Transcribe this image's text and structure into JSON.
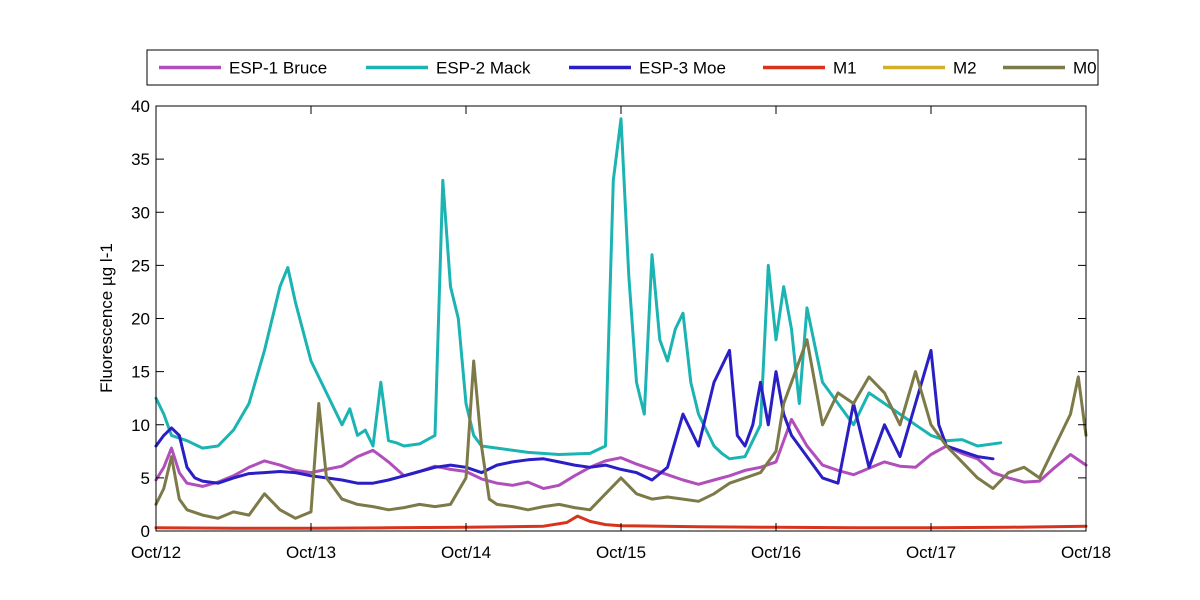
{
  "chart_data": {
    "type": "line",
    "title": "",
    "xlabel": "",
    "ylabel": "Fluorescence µg l-1",
    "ylim": [
      0,
      40
    ],
    "xlim": [
      0,
      6
    ],
    "x_ticks": [
      0,
      1,
      2,
      3,
      4,
      5,
      6
    ],
    "x_tick_labels": [
      "Oct/12",
      "Oct/13",
      "Oct/14",
      "Oct/15",
      "Oct/16",
      "Oct/17",
      "Oct/18"
    ],
    "y_ticks": [
      0,
      5,
      10,
      15,
      20,
      25,
      30,
      35,
      40
    ],
    "y_tick_labels": [
      "0",
      "5",
      "10",
      "15",
      "20",
      "25",
      "30",
      "35",
      "40"
    ],
    "grid": false,
    "legend_position": "top, outside plot, horizontal",
    "series": [
      {
        "name": "ESP-1 Bruce",
        "color": "#b04fbb",
        "x": [
          0,
          0.05,
          0.1,
          0.15,
          0.2,
          0.3,
          0.4,
          0.5,
          0.6,
          0.7,
          0.8,
          0.9,
          1.0,
          1.1,
          1.2,
          1.3,
          1.4,
          1.5,
          1.6,
          1.7,
          1.8,
          1.9,
          2.0,
          2.1,
          2.2,
          2.3,
          2.4,
          2.5,
          2.6,
          2.7,
          2.8,
          2.9,
          3.0,
          3.1,
          3.2,
          3.3,
          3.4,
          3.5,
          3.6,
          3.7,
          3.8,
          3.9,
          4.0,
          4.05,
          4.1,
          4.2,
          4.3,
          4.4,
          4.5,
          4.6,
          4.7,
          4.8,
          4.9,
          5.0,
          5.1,
          5.2,
          5.3,
          5.4,
          5.5,
          5.6,
          5.7,
          5.8,
          5.9,
          6.0
        ],
        "values": [
          4.8,
          6.0,
          7.8,
          5.5,
          4.5,
          4.2,
          4.6,
          5.2,
          6.0,
          6.6,
          6.2,
          5.7,
          5.5,
          5.8,
          6.1,
          7.0,
          7.6,
          6.5,
          5.2,
          5.6,
          6.1,
          5.8,
          5.6,
          4.9,
          4.5,
          4.3,
          4.6,
          4.0,
          4.3,
          5.2,
          6.0,
          6.6,
          6.9,
          6.3,
          5.8,
          5.3,
          4.8,
          4.4,
          4.8,
          5.2,
          5.7,
          6.0,
          6.5,
          8.5,
          10.5,
          8.0,
          6.2,
          5.7,
          5.3,
          5.9,
          6.5,
          6.1,
          6.0,
          7.2,
          8.0,
          7.3,
          6.8,
          5.5,
          5.0,
          4.6,
          4.7,
          6.0,
          7.2,
          6.2
        ]
      },
      {
        "name": "ESP-2 Mack",
        "color": "#1cb3b3",
        "x": [
          0,
          0.05,
          0.1,
          0.2,
          0.3,
          0.4,
          0.5,
          0.6,
          0.7,
          0.8,
          0.85,
          0.9,
          1.0,
          1.1,
          1.2,
          1.25,
          1.3,
          1.35,
          1.4,
          1.45,
          1.5,
          1.55,
          1.6,
          1.7,
          1.8,
          1.85,
          1.9,
          1.95,
          2.0,
          2.05,
          2.1,
          2.2,
          2.4,
          2.6,
          2.8,
          2.9,
          2.95,
          3.0,
          3.05,
          3.1,
          3.15,
          3.2,
          3.25,
          3.3,
          3.35,
          3.4,
          3.45,
          3.5,
          3.55,
          3.6,
          3.65,
          3.7,
          3.8,
          3.9,
          3.95,
          4.0,
          4.05,
          4.1,
          4.15,
          4.2,
          4.3,
          4.4,
          4.5,
          4.6,
          4.7,
          4.8,
          4.9,
          5.0,
          5.1,
          5.2,
          5.3,
          5.45
        ],
        "values": [
          12.5,
          11.0,
          9.0,
          8.5,
          7.8,
          8.0,
          9.5,
          12.0,
          17.0,
          23.0,
          24.8,
          21.5,
          16.0,
          13.0,
          10.0,
          11.5,
          9.0,
          9.5,
          8.0,
          14.0,
          8.5,
          8.3,
          8.0,
          8.2,
          9.0,
          33.0,
          23.0,
          20.0,
          12.0,
          9.0,
          8.0,
          7.8,
          7.4,
          7.2,
          7.3,
          8.0,
          33.0,
          38.8,
          24.0,
          14.0,
          11.0,
          26.0,
          18.0,
          16.0,
          19.0,
          20.5,
          14.0,
          11.0,
          9.5,
          8.0,
          7.3,
          6.8,
          7.0,
          10.0,
          25.0,
          18.0,
          23.0,
          19.0,
          12.0,
          21.0,
          14.0,
          12.0,
          10.0,
          13.0,
          12.0,
          11.0,
          10.0,
          9.0,
          8.5,
          8.6,
          8.0,
          8.3
        ]
      },
      {
        "name": "ESP-3 Moe",
        "color": "#2a1fc4",
        "x": [
          0,
          0.05,
          0.1,
          0.15,
          0.2,
          0.25,
          0.3,
          0.4,
          0.5,
          0.6,
          0.7,
          0.8,
          0.9,
          1.0,
          1.1,
          1.2,
          1.3,
          1.4,
          1.5,
          1.6,
          1.7,
          1.8,
          1.9,
          2.0,
          2.1,
          2.2,
          2.3,
          2.4,
          2.5,
          2.6,
          2.7,
          2.8,
          2.9,
          3.0,
          3.1,
          3.2,
          3.3,
          3.4,
          3.5,
          3.6,
          3.7,
          3.75,
          3.8,
          3.85,
          3.9,
          3.95,
          4.0,
          4.05,
          4.1,
          4.2,
          4.3,
          4.4,
          4.5,
          4.6,
          4.7,
          4.8,
          4.9,
          5.0,
          5.05,
          5.1,
          5.2,
          5.3,
          5.4
        ],
        "values": [
          8.0,
          9.0,
          9.7,
          9.0,
          6.0,
          5.0,
          4.7,
          4.5,
          5.0,
          5.4,
          5.5,
          5.6,
          5.5,
          5.2,
          5.0,
          4.8,
          4.5,
          4.5,
          4.8,
          5.2,
          5.6,
          6.0,
          6.2,
          6.0,
          5.5,
          6.2,
          6.5,
          6.7,
          6.8,
          6.5,
          6.2,
          6.0,
          6.2,
          5.8,
          5.5,
          4.8,
          6.0,
          11.0,
          8.0,
          14.0,
          17.0,
          9.0,
          8.0,
          10.0,
          14.0,
          10.0,
          15.0,
          11.0,
          9.0,
          7.0,
          5.0,
          4.5,
          12.0,
          6.0,
          10.0,
          7.0,
          12.0,
          17.0,
          10.0,
          8.0,
          7.5,
          7.0,
          6.8
        ]
      },
      {
        "name": "M1",
        "color": "#d8341b",
        "x": [
          0,
          0.5,
          1.0,
          1.5,
          2.0,
          2.5,
          2.65,
          2.72,
          2.8,
          2.9,
          3.0,
          3.5,
          4.0,
          4.5,
          5.0,
          5.5,
          6.0
        ],
        "values": [
          0.3,
          0.25,
          0.25,
          0.3,
          0.35,
          0.45,
          0.8,
          1.4,
          0.9,
          0.6,
          0.5,
          0.4,
          0.35,
          0.3,
          0.3,
          0.35,
          0.45
        ]
      },
      {
        "name": "M2",
        "color": "#d4b02a",
        "x": [],
        "values": []
      },
      {
        "name": "M0",
        "color": "#7c7a48",
        "x": [
          0,
          0.05,
          0.1,
          0.15,
          0.2,
          0.3,
          0.4,
          0.5,
          0.6,
          0.7,
          0.8,
          0.9,
          1.0,
          1.05,
          1.1,
          1.2,
          1.3,
          1.4,
          1.5,
          1.6,
          1.7,
          1.8,
          1.9,
          2.0,
          2.05,
          2.1,
          2.15,
          2.2,
          2.3,
          2.4,
          2.5,
          2.6,
          2.7,
          2.8,
          2.9,
          3.0,
          3.1,
          3.2,
          3.3,
          3.4,
          3.5,
          3.6,
          3.7,
          3.8,
          3.9,
          4.0,
          4.05,
          4.1,
          4.2,
          4.3,
          4.4,
          4.5,
          4.6,
          4.7,
          4.8,
          4.9,
          5.0,
          5.1,
          5.2,
          5.3,
          5.4,
          5.5,
          5.6,
          5.7,
          5.8,
          5.9,
          5.95,
          6.0
        ],
        "values": [
          2.5,
          4.0,
          7.0,
          3.0,
          2.0,
          1.5,
          1.2,
          1.8,
          1.5,
          3.5,
          2.0,
          1.2,
          1.8,
          12.0,
          5.0,
          3.0,
          2.5,
          2.3,
          2.0,
          2.2,
          2.5,
          2.3,
          2.5,
          5.0,
          16.0,
          8.0,
          3.0,
          2.5,
          2.3,
          2.0,
          2.3,
          2.5,
          2.2,
          2.0,
          3.5,
          5.0,
          3.5,
          3.0,
          3.2,
          3.0,
          2.8,
          3.5,
          4.5,
          5.0,
          5.5,
          7.5,
          12.0,
          14.0,
          18.0,
          10.0,
          13.0,
          12.0,
          14.5,
          13.0,
          10.0,
          15.0,
          10.0,
          8.0,
          6.5,
          5.0,
          4.0,
          5.5,
          6.0,
          5.0,
          8.0,
          11.0,
          14.5,
          9.0
        ]
      }
    ]
  }
}
